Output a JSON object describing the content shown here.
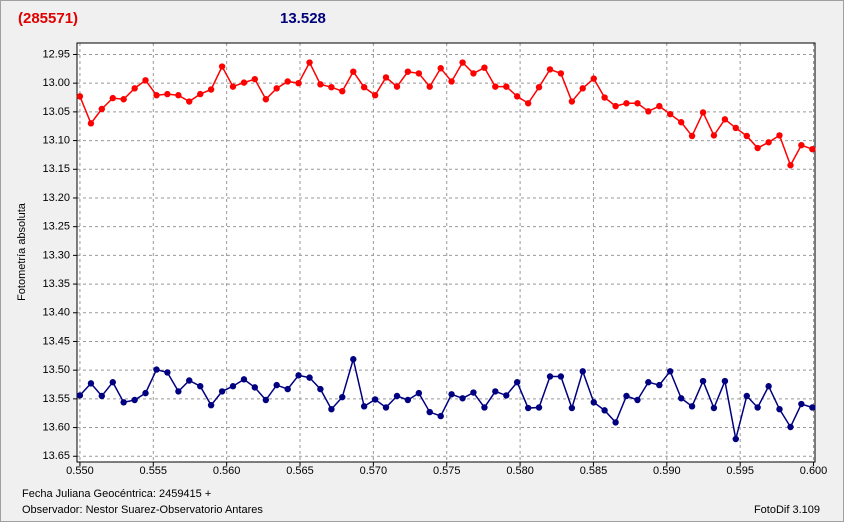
{
  "chart_data": {
    "type": "line",
    "object_label": "(285571)",
    "object_color": "#e00000",
    "magnitude": "13.528",
    "magnitude_color": "#00007a",
    "ylabel": "Fotometría absoluta",
    "footer_left_1": "Fecha Juliana Geocéntrica: 2459415 +",
    "footer_left_2": "Observador: Nestor Suarez-Observatorio Antares",
    "footer_right": "FotoDif 3.109",
    "grid": true,
    "xlim": [
      0.5498,
      0.6001
    ],
    "ylim": [
      13.66,
      12.93
    ],
    "xticks": [
      {
        "value": 0.55,
        "label": "0.550"
      },
      0.555,
      {
        "value": 0.56,
        "label": "0.560"
      },
      0.565,
      {
        "value": 0.57,
        "label": "0.570"
      },
      0.575,
      {
        "value": 0.58,
        "label": "0.580"
      },
      0.585,
      {
        "value": 0.59,
        "label": "0.590"
      },
      0.595,
      {
        "value": 0.6,
        "label": "0.600"
      }
    ],
    "yticks": [
      12.95,
      {
        "value": 13.0,
        "label": "13.00"
      },
      13.05,
      {
        "value": 13.1,
        "label": "13.10"
      },
      13.15,
      {
        "value": 13.2,
        "label": "13.20"
      },
      13.25,
      {
        "value": 13.3,
        "label": "13.30"
      },
      13.35,
      {
        "value": 13.4,
        "label": "13.40"
      },
      13.45,
      {
        "value": 13.5,
        "label": "13.50"
      },
      13.55,
      {
        "value": 13.6,
        "label": "13.60"
      },
      13.65
    ],
    "x": [
      0.55,
      0.55075,
      0.55149,
      0.55224,
      0.55298,
      0.55373,
      0.55447,
      0.55522,
      0.55596,
      0.55671,
      0.55745,
      0.5582,
      0.55894,
      0.55969,
      0.56043,
      0.56118,
      0.56192,
      0.56267,
      0.56341,
      0.56416,
      0.5649,
      0.56565,
      0.56639,
      0.56714,
      0.56788,
      0.56863,
      0.56937,
      0.57012,
      0.57086,
      0.57161,
      0.57235,
      0.5731,
      0.57384,
      0.57459,
      0.57533,
      0.57608,
      0.57682,
      0.57757,
      0.57831,
      0.57906,
      0.5798,
      0.58055,
      0.58129,
      0.58204,
      0.58278,
      0.58353,
      0.58427,
      0.58502,
      0.58576,
      0.58651,
      0.58725,
      0.588,
      0.58874,
      0.58949,
      0.59023,
      0.59098,
      0.59172,
      0.59247,
      0.59321,
      0.59396,
      0.5947,
      0.59545,
      0.59619,
      0.59694,
      0.59768,
      0.59843,
      0.59917,
      0.59992
    ],
    "series": [
      {
        "color": "#ff0000",
        "values": [
          13.023,
          13.07,
          13.045,
          13.026,
          13.028,
          13.009,
          12.995,
          13.021,
          13.019,
          13.021,
          13.032,
          13.019,
          13.011,
          12.971,
          13.006,
          12.999,
          12.993,
          13.028,
          13.009,
          12.997,
          13.0,
          12.964,
          13.002,
          13.007,
          13.014,
          12.98,
          13.007,
          13.021,
          12.99,
          13.006,
          12.98,
          12.983,
          13.006,
          12.974,
          12.997,
          12.964,
          12.983,
          12.973,
          13.006,
          13.006,
          13.023,
          13.035,
          13.007,
          12.976,
          12.983,
          13.032,
          13.009,
          12.992,
          13.025,
          13.04,
          13.035,
          13.035,
          13.049,
          13.04,
          13.054,
          13.068,
          13.092,
          13.051,
          13.091,
          13.063,
          13.078,
          13.092,
          13.113,
          13.103,
          13.091,
          13.143,
          13.108,
          13.115
        ]
      },
      {
        "color": "#000080",
        "values": [
          13.544,
          13.523,
          13.545,
          13.521,
          13.556,
          13.552,
          13.54,
          13.499,
          13.504,
          13.537,
          13.518,
          13.528,
          13.561,
          13.537,
          13.528,
          13.516,
          13.53,
          13.552,
          13.526,
          13.533,
          13.509,
          13.513,
          13.533,
          13.568,
          13.547,
          13.481,
          13.563,
          13.551,
          13.565,
          13.545,
          13.552,
          13.54,
          13.573,
          13.58,
          13.542,
          13.549,
          13.539,
          13.565,
          13.537,
          13.544,
          13.521,
          13.566,
          13.565,
          13.511,
          13.511,
          13.566,
          13.502,
          13.556,
          13.57,
          13.591,
          13.545,
          13.552,
          13.521,
          13.526,
          13.502,
          13.549,
          13.563,
          13.519,
          13.566,
          13.519,
          13.62,
          13.545,
          13.565,
          13.528,
          13.568,
          13.599,
          13.559,
          13.565
        ]
      }
    ]
  }
}
